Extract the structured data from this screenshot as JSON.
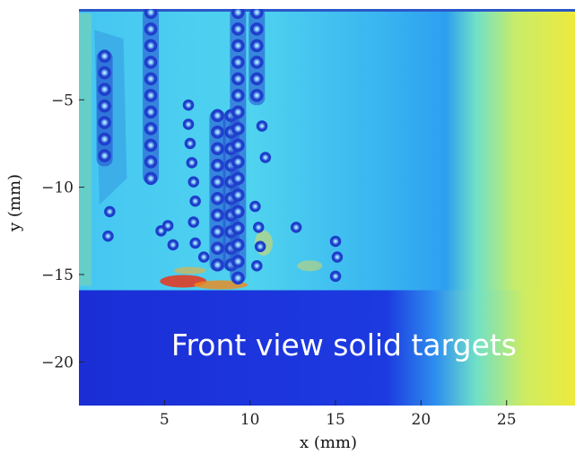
{
  "chart_data": {
    "type": "heatmap",
    "xlabel": "x  (mm)",
    "ylabel": "y  (mm)",
    "xlim": [
      0,
      29
    ],
    "ylim": [
      -22.5,
      0.2
    ],
    "x_ticks": [
      5,
      10,
      15,
      20,
      25
    ],
    "y_ticks": [
      -5,
      -10,
      -15,
      -20
    ],
    "annotation": "Front view solid targets",
    "colormap": "jet",
    "colors": {
      "solid_target": "#1a2fd8",
      "cavity_ring": "#1b3cc8",
      "background_low": "#2a9ef0",
      "background_mid": "#57d9f0",
      "background_high": "#ecec3a",
      "hotspot": "#e8341a"
    },
    "solid_target_boundary_y": -15.9,
    "bubble_columns": [
      {
        "x": 1.5,
        "y_top": -2.5,
        "y_bottom": -8.5
      },
      {
        "x": 4.2,
        "y_top": 0.0,
        "y_bottom": -9.5
      },
      {
        "x": 8.1,
        "y_top": -5.9,
        "y_bottom": -14.5
      },
      {
        "x": 8.9,
        "y_top": -5.9,
        "y_bottom": -14.5
      },
      {
        "x": 9.3,
        "y_top": 0.0,
        "y_bottom": -15.2
      },
      {
        "x": 10.4,
        "y_top": 0.0,
        "y_bottom": -5.0
      }
    ]
  }
}
